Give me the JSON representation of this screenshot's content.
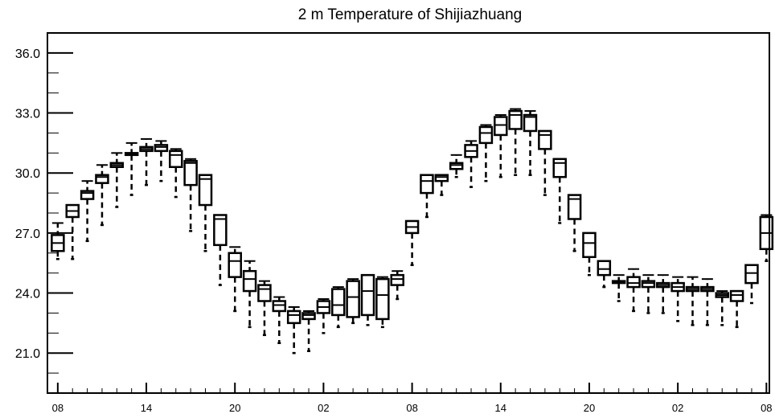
{
  "chart_data": {
    "type": "boxplot",
    "title": "2 m Temperature of Shijiazhuang",
    "xlabel": "",
    "ylabel": "",
    "ylim": [
      19.0,
      37.0
    ],
    "yticks": [
      21.0,
      24.0,
      27.0,
      30.0,
      33.0,
      36.0
    ],
    "ytick_labels": [
      "21.0",
      "24.0",
      "27.0",
      "30.0",
      "33.0",
      "36.0"
    ],
    "xlim": [
      -0.7,
      48.2
    ],
    "xticks": [
      0,
      6,
      12,
      18,
      24,
      30,
      36,
      42,
      48
    ],
    "xtick_labels": [
      "08",
      "14",
      "20",
      "02",
      "08",
      "14",
      "20",
      "02",
      "08"
    ],
    "grid": false,
    "boxes": [
      {
        "x": 0,
        "min": 25.7,
        "q1": 26.1,
        "median": 26.5,
        "q3": 26.9,
        "max": 27.5
      },
      {
        "x": 1,
        "min": 25.7,
        "q1": 27.8,
        "median": 28.1,
        "q3": 28.4,
        "max": 28.4
      },
      {
        "x": 2,
        "min": 26.6,
        "q1": 28.7,
        "median": 29.0,
        "q3": 29.1,
        "max": 29.6
      },
      {
        "x": 3,
        "min": 27.4,
        "q1": 29.5,
        "median": 29.8,
        "q3": 29.9,
        "max": 30.4
      },
      {
        "x": 4,
        "min": 28.3,
        "q1": 30.3,
        "median": 30.4,
        "q3": 30.5,
        "max": 31.0
      },
      {
        "x": 5,
        "min": 28.9,
        "q1": 30.9,
        "median": 30.9,
        "q3": 31.0,
        "max": 31.5
      },
      {
        "x": 6,
        "min": 29.4,
        "q1": 31.1,
        "median": 31.2,
        "q3": 31.3,
        "max": 31.7
      },
      {
        "x": 7,
        "min": 29.6,
        "q1": 31.1,
        "median": 31.3,
        "q3": 31.4,
        "max": 31.6
      },
      {
        "x": 8,
        "min": 28.8,
        "q1": 30.3,
        "median": 30.9,
        "q3": 31.1,
        "max": 31.2
      },
      {
        "x": 9,
        "min": 27.1,
        "q1": 29.4,
        "median": 30.5,
        "q3": 30.6,
        "max": 30.7
      },
      {
        "x": 10,
        "min": 26.1,
        "q1": 28.4,
        "median": 29.7,
        "q3": 29.9,
        "max": 29.9
      },
      {
        "x": 11,
        "min": 24.4,
        "q1": 26.4,
        "median": 27.7,
        "q3": 27.9,
        "max": 27.9
      },
      {
        "x": 12,
        "min": 23.1,
        "q1": 24.8,
        "median": 25.6,
        "q3": 26.0,
        "max": 26.3
      },
      {
        "x": 13,
        "min": 22.3,
        "q1": 24.1,
        "median": 24.7,
        "q3": 25.1,
        "max": 25.6
      },
      {
        "x": 14,
        "min": 21.9,
        "q1": 23.6,
        "median": 24.2,
        "q3": 24.4,
        "max": 24.6
      },
      {
        "x": 15,
        "min": 21.5,
        "q1": 23.1,
        "median": 23.4,
        "q3": 23.6,
        "max": 23.8
      },
      {
        "x": 16,
        "min": 21.0,
        "q1": 22.5,
        "median": 22.9,
        "q3": 23.1,
        "max": 23.3
      },
      {
        "x": 17,
        "min": 21.1,
        "q1": 22.7,
        "median": 22.9,
        "q3": 23.0,
        "max": 23.1
      },
      {
        "x": 18,
        "min": 22.0,
        "q1": 23.0,
        "median": 23.3,
        "q3": 23.6,
        "max": 23.7
      },
      {
        "x": 19,
        "min": 22.3,
        "q1": 22.9,
        "median": 23.4,
        "q3": 24.2,
        "max": 24.3
      },
      {
        "x": 20,
        "min": 22.5,
        "q1": 22.8,
        "median": 23.8,
        "q3": 24.6,
        "max": 24.7
      },
      {
        "x": 21,
        "min": 22.4,
        "q1": 22.9,
        "median": 24.1,
        "q3": 24.9,
        "max": 24.9
      },
      {
        "x": 22,
        "min": 22.3,
        "q1": 22.7,
        "median": 23.9,
        "q3": 24.7,
        "max": 24.8
      },
      {
        "x": 23,
        "min": 23.7,
        "q1": 24.4,
        "median": 24.7,
        "q3": 24.9,
        "max": 25.1
      },
      {
        "x": 24,
        "min": 25.4,
        "q1": 27.0,
        "median": 27.3,
        "q3": 27.6,
        "max": 27.6
      },
      {
        "x": 25,
        "min": 27.8,
        "q1": 29.0,
        "median": 29.6,
        "q3": 29.9,
        "max": 29.9
      },
      {
        "x": 26,
        "min": 28.9,
        "q1": 29.6,
        "median": 29.8,
        "q3": 29.9,
        "max": 29.9
      },
      {
        "x": 27,
        "min": 29.8,
        "q1": 30.2,
        "median": 30.4,
        "q3": 30.5,
        "max": 30.9
      },
      {
        "x": 28,
        "min": 29.3,
        "q1": 30.8,
        "median": 31.1,
        "q3": 31.4,
        "max": 31.6
      },
      {
        "x": 29,
        "min": 29.6,
        "q1": 31.5,
        "median": 32.0,
        "q3": 32.3,
        "max": 32.4
      },
      {
        "x": 30,
        "min": 29.8,
        "q1": 31.9,
        "median": 32.4,
        "q3": 32.8,
        "max": 32.9
      },
      {
        "x": 31,
        "min": 29.9,
        "q1": 32.2,
        "median": 32.9,
        "q3": 33.1,
        "max": 33.2
      },
      {
        "x": 32,
        "min": 29.9,
        "q1": 32.1,
        "median": 32.8,
        "q3": 32.9,
        "max": 33.1
      },
      {
        "x": 33,
        "min": 28.9,
        "q1": 31.2,
        "median": 31.9,
        "q3": 32.1,
        "max": 32.1
      },
      {
        "x": 34,
        "min": 27.5,
        "q1": 29.8,
        "median": 30.5,
        "q3": 30.7,
        "max": 30.7
      },
      {
        "x": 35,
        "min": 26.1,
        "q1": 27.7,
        "median": 28.7,
        "q3": 28.9,
        "max": 28.9
      },
      {
        "x": 36,
        "min": 24.9,
        "q1": 25.8,
        "median": 26.5,
        "q3": 27.0,
        "max": 27.0
      },
      {
        "x": 37,
        "min": 24.3,
        "q1": 24.9,
        "median": 25.2,
        "q3": 25.6,
        "max": 25.6
      },
      {
        "x": 38,
        "min": 23.6,
        "q1": 24.5,
        "median": 24.6,
        "q3": 24.6,
        "max": 24.9
      },
      {
        "x": 39,
        "min": 23.1,
        "q1": 24.3,
        "median": 24.5,
        "q3": 24.8,
        "max": 25.2
      },
      {
        "x": 40,
        "min": 23.0,
        "q1": 24.3,
        "median": 24.5,
        "q3": 24.6,
        "max": 24.9
      },
      {
        "x": 41,
        "min": 23.0,
        "q1": 24.3,
        "median": 24.4,
        "q3": 24.5,
        "max": 24.9
      },
      {
        "x": 42,
        "min": 22.6,
        "q1": 24.1,
        "median": 24.3,
        "q3": 24.5,
        "max": 24.8
      },
      {
        "x": 43,
        "min": 22.4,
        "q1": 24.1,
        "median": 24.2,
        "q3": 24.3,
        "max": 24.8
      },
      {
        "x": 44,
        "min": 22.4,
        "q1": 24.1,
        "median": 24.2,
        "q3": 24.3,
        "max": 24.7
      },
      {
        "x": 45,
        "min": 22.4,
        "q1": 23.8,
        "median": 23.9,
        "q3": 24.0,
        "max": 24.1
      },
      {
        "x": 46,
        "min": 22.3,
        "q1": 23.6,
        "median": 23.9,
        "q3": 24.1,
        "max": 24.1
      },
      {
        "x": 47,
        "min": 23.5,
        "q1": 24.5,
        "median": 25.0,
        "q3": 25.4,
        "max": 25.4
      },
      {
        "x": 48,
        "min": 25.6,
        "q1": 26.2,
        "median": 27.0,
        "q3": 27.8,
        "max": 27.9
      }
    ]
  }
}
